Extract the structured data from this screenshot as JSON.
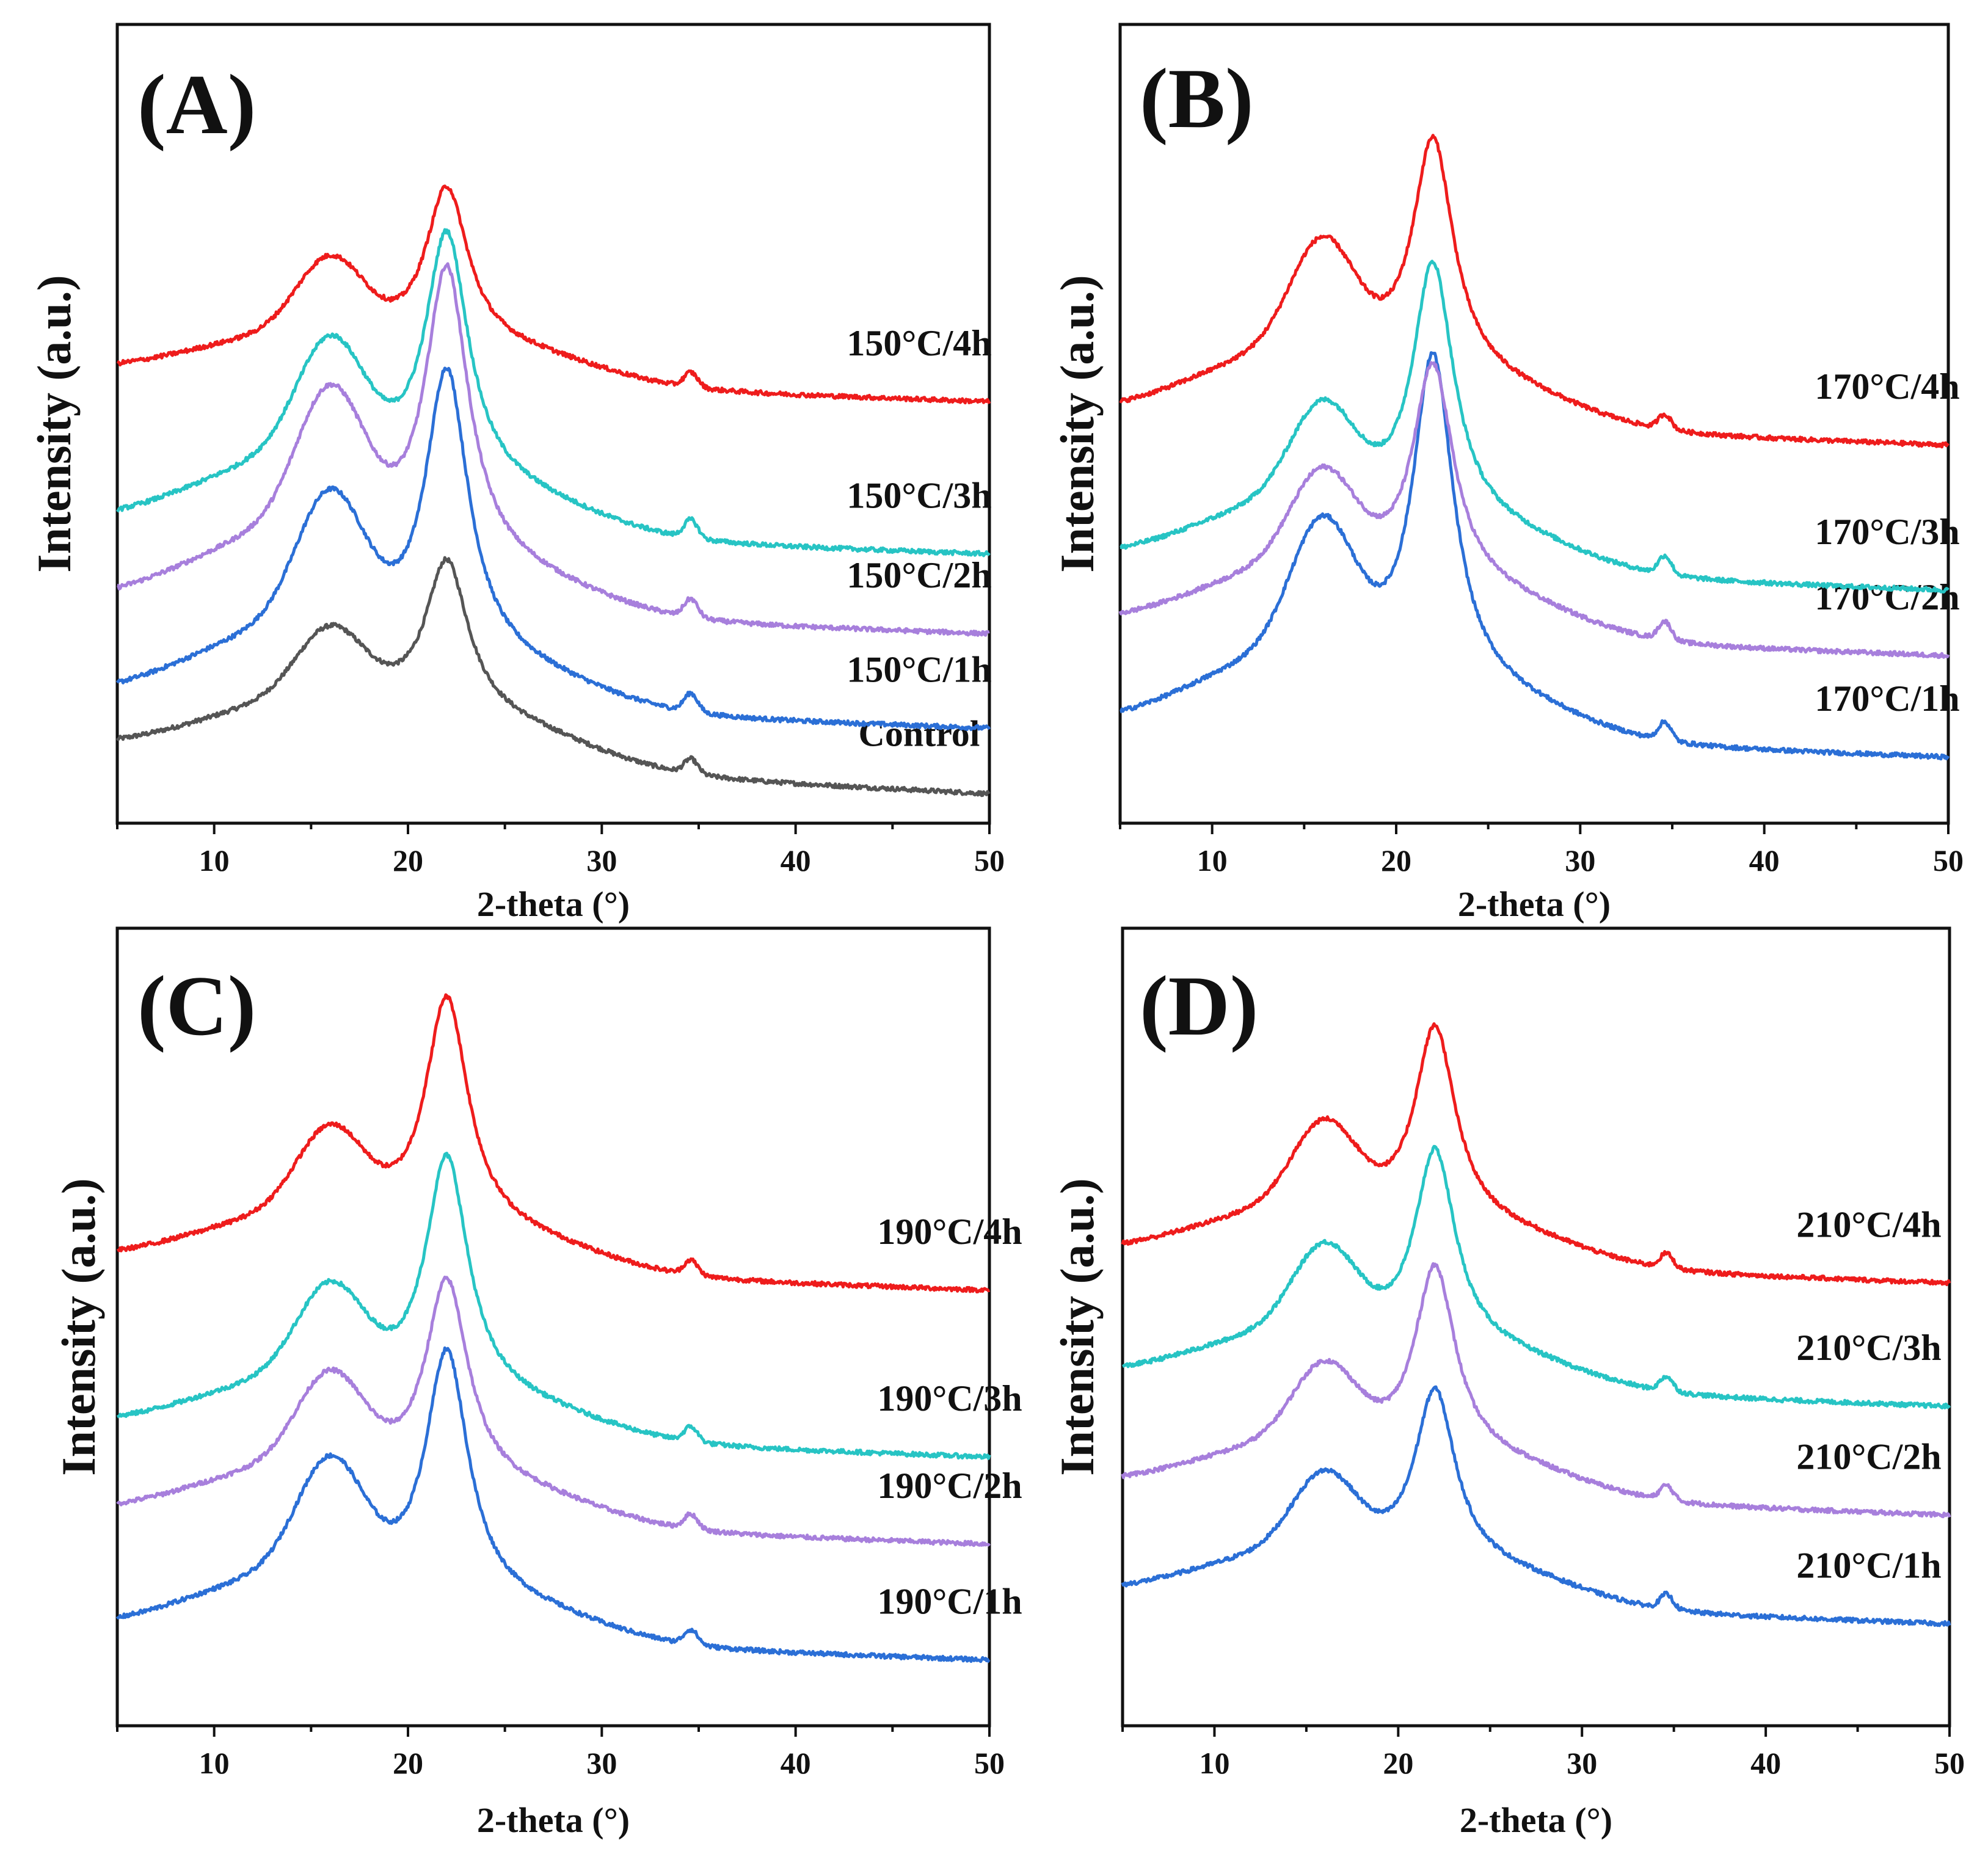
{
  "figure": {
    "colors": {
      "1h": "#2b6fd6",
      "2h": "#a77fdc",
      "3h": "#27c4c4",
      "4h": "#ee1c1c",
      "control": "#555555",
      "axis": "#111111"
    }
  },
  "chart_data": [
    {
      "type": "line",
      "panel": "(A)",
      "xlabel": "2-theta (°)",
      "ylabel": "Intensity (a.u.)",
      "xlim": [
        5,
        50
      ],
      "xticks": [
        10,
        20,
        30,
        40,
        50
      ],
      "ylim": [
        0,
        1.1
      ],
      "series": [
        {
          "name": "Control",
          "color_key": "control",
          "baseline": 0.04,
          "shape": {
            "b5": 0.06,
            "p16": 0.09,
            "p22": 0.21,
            "p345": 0.02,
            "tail50": 0.06
          }
        },
        {
          "name": "150°C/1h",
          "color_key": "1h",
          "baseline": 0.13,
          "shape": {
            "b5": 0.06,
            "p16": 0.17,
            "p22": 0.39,
            "p345": 0.025,
            "tail50": 0.04
          }
        },
        {
          "name": "150°C/2h",
          "color_key": "2h",
          "baseline": 0.26,
          "shape": {
            "b5": 0.06,
            "p16": 0.18,
            "p22": 0.4,
            "p345": 0.025,
            "tail50": 0.04
          }
        },
        {
          "name": "150°C/3h",
          "color_key": "3h",
          "baseline": 0.37,
          "shape": {
            "b5": 0.06,
            "p16": 0.15,
            "p22": 0.34,
            "p345": 0.025,
            "tail50": 0.04
          }
        },
        {
          "name": "150°C/4h",
          "color_key": "4h",
          "baseline": 0.58,
          "shape": {
            "b5": 0.03,
            "p16": 0.1,
            "p22": 0.22,
            "p345": 0.02,
            "tail50": 0.04
          }
        }
      ]
    },
    {
      "type": "line",
      "panel": "(B)",
      "xlabel": "2-theta (°)",
      "ylabel": "Intensity (a.u.)",
      "xlim": [
        5,
        50
      ],
      "xticks": [
        10,
        20,
        30,
        40,
        50
      ],
      "ylim": [
        0,
        1.1
      ],
      "series": [
        {
          "name": "170°C/1h",
          "color_key": "1h",
          "baseline": 0.09,
          "shape": {
            "b5": 0.06,
            "p16": 0.17,
            "p22": 0.45,
            "p345": 0.025,
            "tail50": 0.04
          }
        },
        {
          "name": "170°C/2h",
          "color_key": "2h",
          "baseline": 0.23,
          "shape": {
            "b5": 0.06,
            "p16": 0.12,
            "p22": 0.3,
            "p345": 0.025,
            "tail50": 0.04
          }
        },
        {
          "name": "170°C/3h",
          "color_key": "3h",
          "baseline": 0.32,
          "shape": {
            "b5": 0.06,
            "p16": 0.12,
            "p22": 0.35,
            "p345": 0.025,
            "tail50": 0.04
          }
        },
        {
          "name": "170°C/4h",
          "color_key": "4h",
          "baseline": 0.52,
          "shape": {
            "b5": 0.06,
            "p16": 0.14,
            "p22": 0.32,
            "p345": 0.02,
            "tail50": 0.04
          }
        }
      ]
    },
    {
      "type": "line",
      "panel": "(C)",
      "xlabel": "2-theta (°)",
      "ylabel": "Intensity (a.u.)",
      "xlim": [
        5,
        50
      ],
      "xticks": [
        10,
        20,
        30,
        40,
        50
      ],
      "ylim": [
        0,
        1.1
      ],
      "series": [
        {
          "name": "190°C/1h",
          "color_key": "1h",
          "baseline": 0.09,
          "shape": {
            "b5": 0.04,
            "p16": 0.15,
            "p22": 0.34,
            "p345": 0.02,
            "tail50": 0.04
          }
        },
        {
          "name": "190°C/2h",
          "color_key": "2h",
          "baseline": 0.25,
          "shape": {
            "b5": 0.04,
            "p16": 0.12,
            "p22": 0.28,
            "p345": 0.02,
            "tail50": 0.04
          }
        },
        {
          "name": "190°C/3h",
          "color_key": "3h",
          "baseline": 0.37,
          "shape": {
            "b5": 0.04,
            "p16": 0.12,
            "p22": 0.33,
            "p345": 0.02,
            "tail50": 0.04
          }
        },
        {
          "name": "190°C/4h",
          "color_key": "4h",
          "baseline": 0.6,
          "shape": {
            "b5": 0.04,
            "p16": 0.11,
            "p22": 0.32,
            "p345": 0.02,
            "tail50": 0.04
          }
        }
      ]
    },
    {
      "type": "line",
      "panel": "(D)",
      "xlabel": "2-theta (°)",
      "ylabel": "Intensity (a.u.)",
      "xlim": [
        5,
        50
      ],
      "xticks": [
        10,
        20,
        30,
        40,
        50
      ],
      "ylim": [
        0,
        1.1
      ],
      "series": [
        {
          "name": "210°C/1h",
          "color_key": "1h",
          "baseline": 0.14,
          "shape": {
            "b5": 0.04,
            "p16": 0.1,
            "p22": 0.24,
            "p345": 0.02,
            "tail50": 0.04
          }
        },
        {
          "name": "210°C/2h",
          "color_key": "2h",
          "baseline": 0.29,
          "shape": {
            "b5": 0.04,
            "p16": 0.1,
            "p22": 0.26,
            "p345": 0.02,
            "tail50": 0.04
          }
        },
        {
          "name": "210°C/3h",
          "color_key": "3h",
          "baseline": 0.44,
          "shape": {
            "b5": 0.04,
            "p16": 0.11,
            "p22": 0.27,
            "p345": 0.02,
            "tail50": 0.04
          }
        },
        {
          "name": "210°C/4h",
          "color_key": "4h",
          "baseline": 0.61,
          "shape": {
            "b5": 0.04,
            "p16": 0.11,
            "p22": 0.27,
            "p345": 0.02,
            "tail50": 0.04
          }
        }
      ]
    }
  ]
}
